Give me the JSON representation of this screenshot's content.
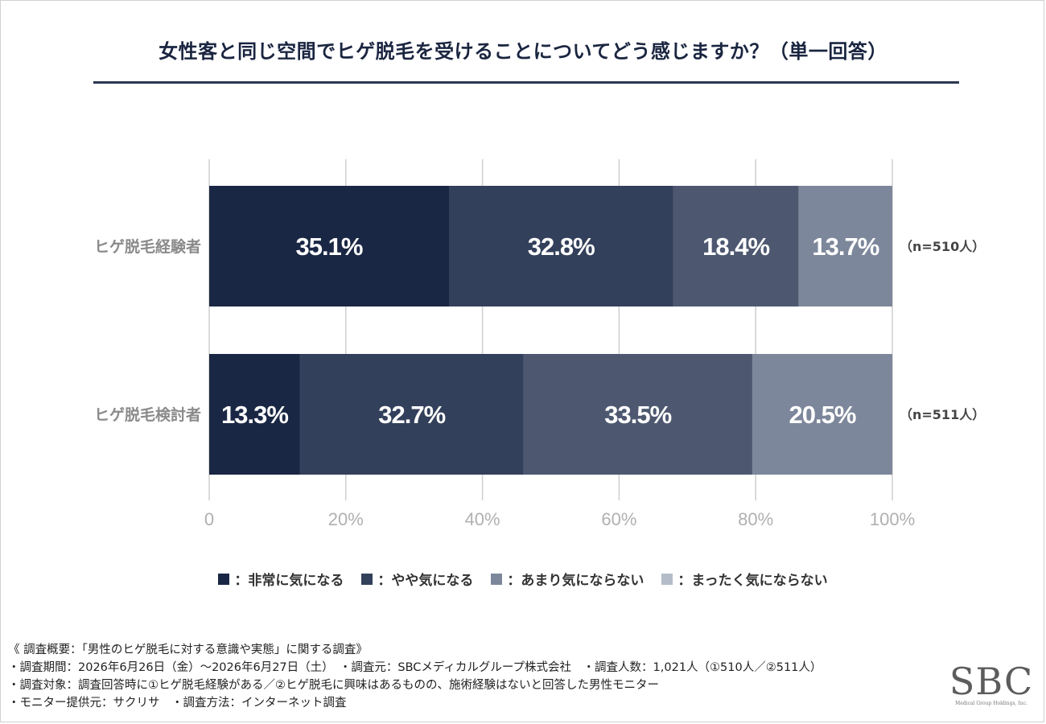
{
  "title": "女性客と同じ空間でヒゲ脱毛を受けることについてどう感じますか？（単一回答）",
  "legend": [
    {
      "label": "：非常に気になる",
      "color": "#1a2744"
    },
    {
      "label": "：やや気になる",
      "color": "#33405b"
    },
    {
      "label": "：あまり気にならない",
      "color": "#7d879b"
    },
    {
      "label": "：まったく気にならない",
      "color": "#b5bcc9"
    }
  ],
  "chart_data": {
    "type": "bar",
    "orientation": "horizontal",
    "stacked": true,
    "categories": [
      "ヒゲ脱毛経験者",
      "ヒゲ脱毛検討者"
    ],
    "n_labels": [
      "（n=510人）",
      "（n=511人）"
    ],
    "series": [
      {
        "name": "非常に気になる",
        "values": [
          35.1,
          13.3
        ],
        "labels": [
          "35.1%",
          "13.3%"
        ],
        "color": "#1a2744"
      },
      {
        "name": "やや気になる",
        "values": [
          32.8,
          32.7
        ],
        "labels": [
          "32.8%",
          "32.7%"
        ],
        "color": "#33405b"
      },
      {
        "name": "あまり気にならない",
        "values": [
          18.4,
          33.5
        ],
        "labels": [
          "18.4%",
          "33.5%"
        ],
        "color": "#4d5870"
      },
      {
        "name": "まったく気にならない",
        "values": [
          13.7,
          20.5
        ],
        "labels": [
          "13.7%",
          "20.5%"
        ],
        "color": "#7d879b"
      }
    ],
    "xlim": [
      0,
      100
    ],
    "xticks": [
      0,
      20,
      40,
      60,
      80,
      100
    ],
    "xtick_labels": [
      "0",
      "20%",
      "40%",
      "60%",
      "80%",
      "100%"
    ],
    "grid": true
  },
  "notes": {
    "line1": "《 調査概要：「男性のヒゲ脱毛に対する意識や実態」に関する調査》",
    "line2": "・調査期間：2026年6月26日（金）～2026年6月27日（土）　・調査元：SBCメディカルグループ株式会社　・調査人数：1,021人（①510人／②511人）",
    "line3": "・調査対象：調査回答時に①ヒゲ脱毛経験がある／②ヒゲ脱毛に興味はあるものの、施術経験はないと回答した男性モニター",
    "line4": "・モニター提供元：サクリサ　・調査方法：インターネット調査"
  },
  "logo": {
    "main": "SBC",
    "sub": "Medical Group Holdings, Inc."
  }
}
